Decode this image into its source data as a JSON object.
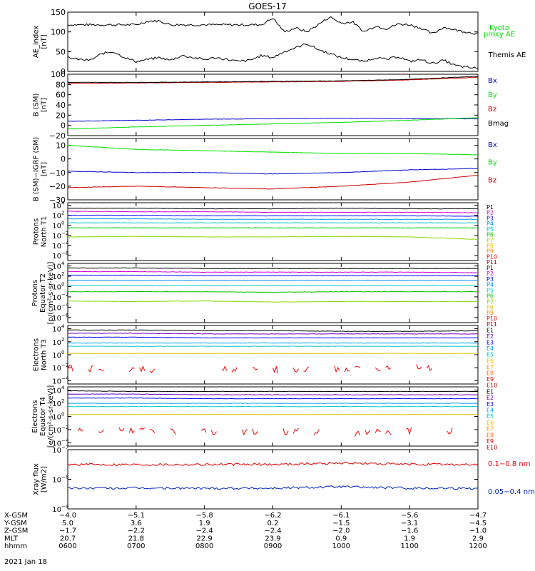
{
  "title": "GOES-17",
  "date": "2021 Jan 18",
  "colors": {
    "black": "#000000",
    "green": "#00dd00",
    "blue": "#0000cc",
    "red": "#cc0000",
    "red_xray": "#dd0000",
    "blue_xray": "#0022bb"
  },
  "panels": [
    {
      "id": "ae",
      "ylabel": [
        "AE_index",
        "[nT]"
      ],
      "ticks": [
        "150",
        "100",
        "50",
        "0"
      ],
      "legend": [
        {
          "text": "Kyoto",
          "color": "#00dd00"
        },
        {
          "text": "proxy AE",
          "color": "#00dd00"
        },
        {
          "text": "Themis AE",
          "color": "#000000"
        }
      ]
    },
    {
      "id": "bsm",
      "ylabel": [
        "B (SM)",
        "[nT]"
      ],
      "ticks": [
        "100",
        "80",
        "60",
        "40",
        "20",
        "0",
        "−20"
      ],
      "legend": [
        {
          "text": "Bx",
          "color": "#0000cc"
        },
        {
          "text": "By",
          "color": "#00dd00"
        },
        {
          "text": "Bz",
          "color": "#cc0000"
        },
        {
          "text": "Bmag",
          "color": "#000000"
        }
      ]
    },
    {
      "id": "bigrf",
      "ylabel": [
        "B (SM)−IGRF (SM)",
        "[nT]"
      ],
      "ticks": [
        "10",
        "0",
        "−10",
        "−20",
        "−30"
      ],
      "legend": [
        {
          "text": "Bx",
          "color": "#0000cc"
        },
        {
          "text": "By",
          "color": "#00dd00"
        },
        {
          "text": "Bz",
          "color": "#cc0000"
        }
      ]
    },
    {
      "id": "pnt1",
      "ylabel": [
        "Protons",
        "North T1"
      ],
      "ticks_log": [
        "4",
        "2",
        "0",
        "−2",
        "−4",
        "−6"
      ],
      "channels": [
        "P1",
        "P2",
        "P3",
        "P4",
        "P5",
        "P6",
        "P7",
        "P8",
        "P9",
        "P10",
        "P11"
      ]
    },
    {
      "id": "pet2",
      "ylabel": [
        "Protons",
        "Equator T2",
        "[p/(cm²-s-sr-keV)]"
      ],
      "ticks_log": [
        "4",
        "2",
        "0",
        "−2",
        "−4",
        "−6"
      ],
      "channels": [
        "P1",
        "P2",
        "P3",
        "P4",
        "P5",
        "P6",
        "P7",
        "P8",
        "P9",
        "P10",
        "P11"
      ]
    },
    {
      "id": "ent3",
      "ylabel": [
        "Electrons",
        "North T3"
      ],
      "ticks_log": [
        "4",
        "2",
        "0",
        "−2",
        "−4"
      ],
      "channels": [
        "E1",
        "E2",
        "E3",
        "E4",
        "E5",
        "E6",
        "E7",
        "E8",
        "E9",
        "E10"
      ]
    },
    {
      "id": "eet4",
      "ylabel": [
        "Electrons",
        "Equator T4",
        "[e/(cm²-s-sr-keV)]"
      ],
      "ticks_log": [
        "4",
        "2",
        "0",
        "−2",
        "−4"
      ],
      "channels": [
        "E1",
        "E2",
        "E3",
        "E4",
        "E5",
        "E6",
        "E7",
        "E8",
        "E9",
        "E10"
      ]
    },
    {
      "id": "xray",
      "ylabel": [
        "Xray flux",
        "[W/m2]"
      ],
      "ticks_log": [
        "−7",
        "−8",
        "−9"
      ],
      "legend": [
        {
          "text": "0.1−0.8 nm",
          "color": "#dd0000"
        },
        {
          "text": "0.05−0.4 nm",
          "color": "#0022bb"
        }
      ]
    }
  ],
  "channel_colors_p": [
    "#000000",
    "#d000d0",
    "#0000ff",
    "#0090ff",
    "#00c8c8",
    "#00c000",
    "#88d800",
    "#e0c000",
    "#ff8800",
    "#ee0000",
    "#aa0000"
  ],
  "channel_colors_e": [
    "#000000",
    "#7000c0",
    "#0000ff",
    "#00a0ff",
    "#00c8c8",
    "#e0c000",
    "#ff9900",
    "#ff6600",
    "#ee0000",
    "#aa0000"
  ],
  "coords": {
    "rows": [
      {
        "label": "X-GSM",
        "values": [
          "−4.0",
          "−5.1",
          "−5.8",
          "−6.2",
          "−6.1",
          "−5.6",
          "−4.7"
        ]
      },
      {
        "label": "Y-GSM",
        "values": [
          "5.0",
          "3.6",
          "1.9",
          "0.2",
          "−1.5",
          "−3.1",
          "−4.5"
        ]
      },
      {
        "label": "Z-GSM",
        "values": [
          "−1.7",
          "−2.2",
          "−2.4",
          "−2.4",
          "−2.0",
          "−1.6",
          "−1.0"
        ]
      },
      {
        "label": "MLT",
        "values": [
          "20.7",
          "21.8",
          "22.9",
          "23.9",
          "0.9",
          "1.9",
          "2.9"
        ]
      },
      {
        "label": "hhmm",
        "values": [
          "0600",
          "0700",
          "0800",
          "0900",
          "1000",
          "1100",
          "1200"
        ]
      }
    ]
  },
  "chart_data": {
    "type": "line",
    "title": "GOES-17",
    "x_time_ticks": [
      "0600",
      "0700",
      "0800",
      "0900",
      "1000",
      "1100",
      "1200"
    ],
    "xlim": [
      "0600",
      "1200"
    ],
    "panels": [
      {
        "name": "AE_index",
        "ylim": [
          0,
          150
        ],
        "series": [
          {
            "name": "Kyoto proxy AE",
            "x": [
              "0600",
              "0630",
              "0700",
              "0710",
              "0720",
              "0730",
              "0800",
              "0830",
              "0850",
              "0900",
              "0910",
              "0920",
              "0930",
              "0950",
              "1000",
              "1010",
              "1020",
              "1030",
              "1040",
              "1050",
              "1100",
              "1110",
              "1120",
              "1130",
              "1140",
              "1150",
              "1200"
            ],
            "values": [
              118,
              118,
              118,
              127,
              128,
              118,
              118,
              118,
              118,
              135,
              100,
              110,
              100,
              138,
              122,
              125,
              100,
              115,
              108,
              120,
              118,
              110,
              95,
              112,
              105,
              100,
              95
            ]
          },
          {
            "name": "Themis AE",
            "x": [
              "0600",
              "0610",
              "0620",
              "0630",
              "0640",
              "0650",
              "0700",
              "0710",
              "0720",
              "0730",
              "0740",
              "0750",
              "0800",
              "0810",
              "0820",
              "0830",
              "0840",
              "0850",
              "0900",
              "0910",
              "0920",
              "0930",
              "0940",
              "0950",
              "1000",
              "1010",
              "1020",
              "1030",
              "1040",
              "1050",
              "1100",
              "1110",
              "1120",
              "1130",
              "1140",
              "1150",
              "1200"
            ],
            "values": [
              35,
              30,
              28,
              45,
              50,
              35,
              25,
              30,
              35,
              28,
              40,
              35,
              30,
              35,
              30,
              25,
              28,
              40,
              35,
              50,
              60,
              70,
              55,
              45,
              35,
              30,
              25,
              35,
              30,
              38,
              25,
              30,
              20,
              28,
              15,
              10,
              8
            ]
          }
        ]
      },
      {
        "name": "B (SM)",
        "ylim": [
          -20,
          100
        ],
        "series": [
          {
            "name": "Bx",
            "x": [
              "0600",
              "0700",
              "0800",
              "0900",
              "1000",
              "1100",
              "1200"
            ],
            "values": [
              8,
              10,
              12,
              13,
              14,
              13,
              13
            ]
          },
          {
            "name": "By",
            "x": [
              "0600",
              "0700",
              "0800",
              "0900",
              "1000",
              "1100",
              "1200"
            ],
            "values": [
              -7,
              -3,
              0,
              3,
              6,
              10,
              15
            ]
          },
          {
            "name": "Bz",
            "x": [
              "0600",
              "0700",
              "0800",
              "0900",
              "1000",
              "1100",
              "1200"
            ],
            "values": [
              82,
              83,
              84,
              85,
              86,
              89,
              94
            ]
          },
          {
            "name": "Bmag",
            "x": [
              "0600",
              "0700",
              "0800",
              "0900",
              "1000",
              "1100",
              "1200"
            ],
            "values": [
              84,
              84,
              85,
              86,
              87,
              90,
              96
            ]
          }
        ]
      },
      {
        "name": "B (SM)-IGRF (SM)",
        "ylim": [
          -30,
          15
        ],
        "series": [
          {
            "name": "Bx",
            "x": [
              "0600",
              "0700",
              "0800",
              "0900",
              "1000",
              "1100",
              "1200"
            ],
            "values": [
              -9,
              -10,
              -10,
              -11,
              -10,
              -8,
              -7
            ]
          },
          {
            "name": "By",
            "x": [
              "0600",
              "0700",
              "0800",
              "0900",
              "1000",
              "1100",
              "1200"
            ],
            "values": [
              10,
              7,
              6,
              5,
              4,
              4,
              3
            ]
          },
          {
            "name": "Bz",
            "x": [
              "0600",
              "0700",
              "0800",
              "0900",
              "1000",
              "1100",
              "1200"
            ],
            "values": [
              -21,
              -20,
              -21,
              -22,
              -20,
              -17,
              -12
            ]
          }
        ]
      },
      {
        "name": "Protons North T1 (log10)",
        "ylim": [
          -7,
          4.5
        ],
        "series": [
          {
            "name": "P1",
            "values": [
              3.4,
              3.4,
              3.3,
              3.3,
              3.4,
              3.3,
              3.3
            ]
          },
          {
            "name": "P2",
            "values": [
              2.8,
              2.7,
              2.7,
              2.6,
              2.6,
              2.6,
              2.5
            ]
          },
          {
            "name": "P3",
            "values": [
              2.0,
              2.0,
              1.9,
              1.9,
              1.9,
              1.9,
              1.8
            ]
          },
          {
            "name": "P4",
            "values": [
              1.3,
              1.3,
              1.2,
              1.2,
              1.2,
              1.2,
              1.2
            ]
          },
          {
            "name": "P5",
            "values": [
              0.5,
              0.5,
              0.5,
              0.5,
              0.5,
              0.5,
              0.5
            ]
          },
          {
            "name": "P6",
            "values": [
              -0.5,
              -0.5,
              -0.5,
              -0.5,
              -0.5,
              -0.5,
              -0.5
            ]
          },
          {
            "name": "P7",
            "values": [
              -2.3,
              -2.2,
              -2.3,
              -2.3,
              -2.2,
              -2.3,
              -2.8
            ]
          }
        ]
      },
      {
        "name": "Protons Equator T2 (log10)",
        "ylim": [
          -7,
          4.5
        ],
        "series": [
          {
            "name": "P1",
            "values": [
              3.6,
              3.6,
              3.5,
              3.5,
              3.5,
              3.5,
              3.5
            ]
          },
          {
            "name": "P2",
            "values": [
              2.9,
              2.9,
              2.8,
              2.8,
              2.8,
              2.8,
              2.7
            ]
          },
          {
            "name": "P3",
            "values": [
              2.2,
              2.2,
              2.1,
              2.1,
              2.1,
              2.1,
              2.1
            ]
          },
          {
            "name": "P4",
            "values": [
              1.2,
              1.2,
              1.2,
              1.2,
              1.2,
              1.2,
              1.2
            ]
          },
          {
            "name": "P5",
            "values": [
              0.2,
              0.2,
              0.2,
              0.2,
              0.2,
              0.2,
              0.2
            ]
          },
          {
            "name": "P6",
            "values": [
              -1.0,
              -1.0,
              -1.0,
              -1.1,
              -1.0,
              -1.0,
              -1.0
            ]
          },
          {
            "name": "P7",
            "values": [
              -2.8,
              -2.9,
              -2.8,
              -3.0,
              -2.9,
              -2.9,
              -2.9
            ]
          }
        ]
      },
      {
        "name": "Electrons North T3 (log10)",
        "ylim": [
          -4.5,
          4.5
        ],
        "series": [
          {
            "name": "E1",
            "values": [
              3.8,
              3.8,
              3.7,
              3.7,
              3.6,
              3.6,
              3.7
            ]
          },
          {
            "name": "E2",
            "values": [
              3.3,
              3.3,
              3.2,
              3.2,
              3.2,
              3.2,
              3.2
            ]
          },
          {
            "name": "E3",
            "values": [
              2.7,
              2.7,
              2.6,
              2.6,
              2.6,
              2.6,
              2.6
            ]
          },
          {
            "name": "E4",
            "values": [
              1.8,
              1.8,
              1.8,
              1.8,
              1.8,
              1.8,
              1.8
            ]
          },
          {
            "name": "E5",
            "values": [
              1.3,
              1.3,
              1.3,
              1.3,
              1.3,
              1.3,
              1.3
            ]
          },
          {
            "name": "E6",
            "values": [
              0.2,
              0.2,
              0.2,
              0.2,
              0.2,
              0.2,
              0.2
            ]
          },
          {
            "name": "E9",
            "values": [
              -2.0,
              -2.3,
              -2.1,
              -2.4,
              -2.2,
              -2.0,
              -2.5
            ]
          }
        ]
      },
      {
        "name": "Electrons Equator T4 (log10)",
        "ylim": [
          -4.5,
          4.5
        ],
        "series": [
          {
            "name": "E1",
            "values": [
              3.9,
              3.8,
              3.8,
              3.8,
              3.8,
              3.8,
              3.8
            ]
          },
          {
            "name": "E2",
            "values": [
              3.4,
              3.4,
              3.3,
              3.3,
              3.3,
              3.3,
              3.3
            ]
          },
          {
            "name": "E3",
            "values": [
              2.8,
              2.8,
              2.7,
              2.7,
              2.7,
              2.7,
              2.7
            ]
          },
          {
            "name": "E4",
            "values": [
              2.0,
              2.0,
              2.0,
              2.0,
              2.0,
              2.0,
              2.0
            ]
          },
          {
            "name": "E5",
            "values": [
              1.5,
              1.5,
              1.5,
              1.5,
              1.5,
              1.5,
              1.5
            ]
          },
          {
            "name": "E6",
            "values": [
              0.3,
              0.3,
              0.3,
              0.3,
              0.3,
              0.3,
              0.3
            ]
          },
          {
            "name": "E9",
            "values": [
              -2.2,
              -2.0,
              -2.4,
              -2.1,
              -2.6,
              -2.2,
              -2.3
            ]
          }
        ]
      },
      {
        "name": "Xray flux (log10 W/m2)",
        "ylim": [
          -9,
          -7
        ],
        "series": [
          {
            "name": "0.1-0.8 nm",
            "values": [
              -7.5,
              -7.5,
              -7.5,
              -7.5,
              -7.45,
              -7.5,
              -7.5
            ]
          },
          {
            "name": "0.05-0.4 nm",
            "values": [
              -8.3,
              -8.3,
              -8.3,
              -8.3,
              -8.25,
              -8.3,
              -8.3
            ]
          }
        ]
      }
    ]
  }
}
